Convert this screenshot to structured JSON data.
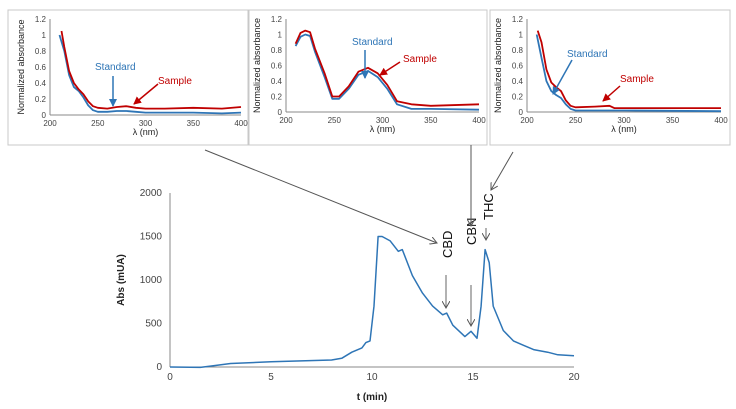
{
  "chart_data": [
    {
      "type": "line",
      "panel": "inset-1",
      "xlabel": "λ (nm)",
      "ylabel": "Normalized absorbance",
      "xlim": [
        200,
        400
      ],
      "ylim": [
        0,
        1.2
      ],
      "xticks": [
        "200",
        "250",
        "300",
        "350",
        "400"
      ],
      "yticks": [
        "0",
        "0.2",
        "0.4",
        "0.6",
        "0.8",
        "1",
        "1.2"
      ],
      "series": [
        {
          "name": "Standard",
          "color": "#2e75b6",
          "points": [
            [
              210,
              1
            ],
            [
              215,
              0.8
            ],
            [
              220,
              0.5
            ],
            [
              225,
              0.35
            ],
            [
              230,
              0.3
            ],
            [
              235,
              0.22
            ],
            [
              240,
              0.12
            ],
            [
              245,
              0.06
            ],
            [
              250,
              0.04
            ],
            [
              260,
              0.04
            ],
            [
              270,
              0.05
            ],
            [
              280,
              0.05
            ],
            [
              290,
              0.04
            ],
            [
              300,
              0.03
            ],
            [
              350,
              0.03
            ],
            [
              380,
              0.02
            ],
            [
              400,
              0.03
            ]
          ]
        },
        {
          "name": "Sample",
          "color": "#c00000",
          "points": [
            [
              212,
              1.05
            ],
            [
              215,
              0.85
            ],
            [
              220,
              0.55
            ],
            [
              225,
              0.4
            ],
            [
              230,
              0.32
            ],
            [
              235,
              0.26
            ],
            [
              240,
              0.17
            ],
            [
              245,
              0.11
            ],
            [
              250,
              0.09
            ],
            [
              260,
              0.08
            ],
            [
              270,
              0.1
            ],
            [
              280,
              0.11
            ],
            [
              290,
              0.09
            ],
            [
              300,
              0.08
            ],
            [
              320,
              0.08
            ],
            [
              350,
              0.09
            ],
            [
              380,
              0.08
            ],
            [
              400,
              0.1
            ]
          ]
        }
      ]
    },
    {
      "type": "line",
      "panel": "inset-2",
      "xlabel": "λ (nm)",
      "ylabel": "Normalized absorbance",
      "xlim": [
        200,
        400
      ],
      "ylim": [
        0,
        1.2
      ],
      "xticks": [
        "200",
        "250",
        "300",
        "350",
        "400"
      ],
      "yticks": [
        "0",
        "0.2",
        "0.4",
        "0.6",
        "0.8",
        "1",
        "1.2"
      ],
      "series": [
        {
          "name": "Standard",
          "color": "#2e75b6",
          "points": [
            [
              210,
              0.85
            ],
            [
              215,
              0.97
            ],
            [
              220,
              1.0
            ],
            [
              225,
              0.98
            ],
            [
              230,
              0.78
            ],
            [
              240,
              0.45
            ],
            [
              248,
              0.17
            ],
            [
              255,
              0.17
            ],
            [
              265,
              0.3
            ],
            [
              275,
              0.48
            ],
            [
              285,
              0.53
            ],
            [
              295,
              0.45
            ],
            [
              305,
              0.3
            ],
            [
              315,
              0.1
            ],
            [
              330,
              0.04
            ],
            [
              350,
              0.04
            ],
            [
              400,
              0.03
            ]
          ]
        },
        {
          "name": "Sample",
          "color": "#c00000",
          "points": [
            [
              210,
              0.88
            ],
            [
              215,
              1.02
            ],
            [
              220,
              1.05
            ],
            [
              225,
              1.03
            ],
            [
              230,
              0.82
            ],
            [
              240,
              0.5
            ],
            [
              248,
              0.2
            ],
            [
              255,
              0.2
            ],
            [
              265,
              0.33
            ],
            [
              275,
              0.52
            ],
            [
              285,
              0.57
            ],
            [
              295,
              0.5
            ],
            [
              305,
              0.35
            ],
            [
              315,
              0.14
            ],
            [
              330,
              0.1
            ],
            [
              350,
              0.08
            ],
            [
              400,
              0.1
            ]
          ]
        }
      ]
    },
    {
      "type": "line",
      "panel": "inset-3",
      "xlabel": "λ (nm)",
      "ylabel": "Normalized absorbance",
      "xlim": [
        200,
        400
      ],
      "ylim": [
        0,
        1.2
      ],
      "xticks": [
        "200",
        "250",
        "300",
        "350",
        "400"
      ],
      "yticks": [
        "0",
        "0.2",
        "0.4",
        "0.6",
        "0.8",
        "1",
        "1.2"
      ],
      "series": [
        {
          "name": "Standard",
          "color": "#2e75b6",
          "points": [
            [
              210,
              1
            ],
            [
              215,
              0.7
            ],
            [
              220,
              0.4
            ],
            [
              225,
              0.27
            ],
            [
              230,
              0.22
            ],
            [
              235,
              0.18
            ],
            [
              240,
              0.1
            ],
            [
              245,
              0.04
            ],
            [
              250,
              0.02
            ],
            [
              300,
              0.02
            ],
            [
              400,
              0.01
            ]
          ]
        },
        {
          "name": "Sample",
          "color": "#c00000",
          "points": [
            [
              211,
              1.05
            ],
            [
              215,
              0.9
            ],
            [
              220,
              0.55
            ],
            [
              225,
              0.38
            ],
            [
              230,
              0.32
            ],
            [
              235,
              0.27
            ],
            [
              240,
              0.15
            ],
            [
              245,
              0.08
            ],
            [
              250,
              0.06
            ],
            [
              270,
              0.07
            ],
            [
              285,
              0.08
            ],
            [
              290,
              0.05
            ],
            [
              400,
              0.05
            ]
          ]
        }
      ]
    },
    {
      "type": "line",
      "panel": "main",
      "xlabel": "t (min)",
      "ylabel": "Abs (mUA)",
      "xlim": [
        0,
        20
      ],
      "ylim": [
        0,
        2000
      ],
      "xticks": [
        "0",
        "5",
        "10",
        "15",
        "20"
      ],
      "yticks": [
        "0",
        "500",
        "1000",
        "1500",
        "2000"
      ],
      "series": [
        {
          "color": "#2e75b6",
          "points": [
            [
              0,
              0
            ],
            [
              1.5,
              -5
            ],
            [
              2,
              10
            ],
            [
              3,
              40
            ],
            [
              5,
              60
            ],
            [
              8,
              80
            ],
            [
              8.5,
              100
            ],
            [
              9,
              170
            ],
            [
              9.5,
              220
            ],
            [
              9.7,
              280
            ],
            [
              9.9,
              300
            ],
            [
              10.1,
              700
            ],
            [
              10.3,
              1500
            ],
            [
              10.5,
              1500
            ],
            [
              10.9,
              1450
            ],
            [
              11.3,
              1330
            ],
            [
              11.5,
              1350
            ],
            [
              12,
              1050
            ],
            [
              12.5,
              850
            ],
            [
              13,
              700
            ],
            [
              13.5,
              600
            ],
            [
              13.7,
              620
            ],
            [
              14,
              480
            ],
            [
              14.6,
              350
            ],
            [
              14.9,
              410
            ],
            [
              15.2,
              330
            ],
            [
              15.4,
              700
            ],
            [
              15.6,
              1350
            ],
            [
              15.8,
              1200
            ],
            [
              16,
              700
            ],
            [
              16.5,
              420
            ],
            [
              17,
              300
            ],
            [
              17.5,
              250
            ],
            [
              18,
              200
            ],
            [
              18.7,
              170
            ],
            [
              19.2,
              140
            ],
            [
              20,
              130
            ]
          ]
        }
      ],
      "annotations": [
        "CBD",
        "CBN",
        "THC"
      ]
    }
  ]
}
